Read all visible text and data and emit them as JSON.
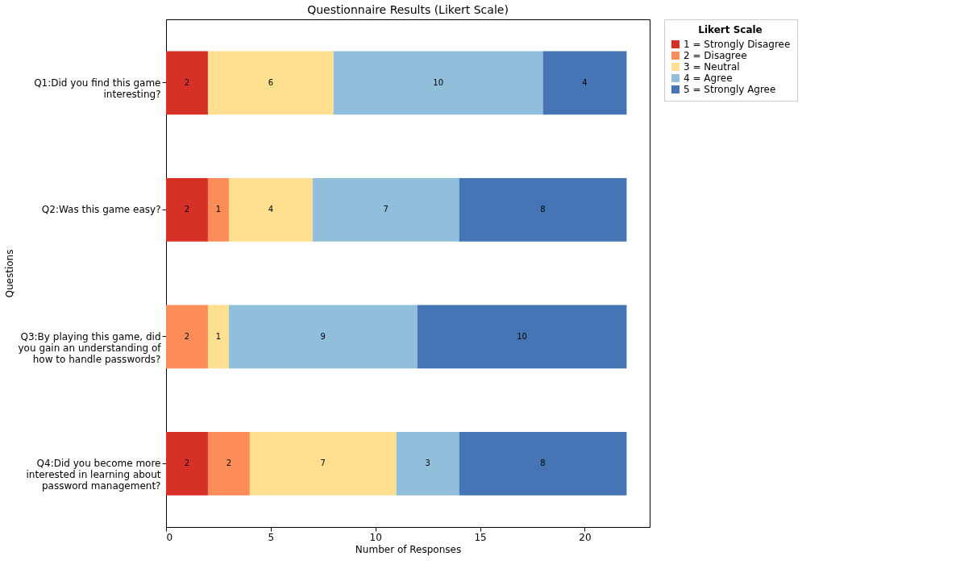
{
  "chart_data": {
    "type": "bar",
    "orientation": "horizontal",
    "stacked": true,
    "title": "Questionnaire Results (Likert Scale)",
    "xlabel": "Number of Responses",
    "ylabel": "Questions",
    "legend_title": "Likert Scale",
    "legend": "right",
    "categories": [
      "Q1:Did you find this game\ninteresting?",
      "Q2:Was this game easy?",
      "Q3:By playing this game, did\nyou gain an understanding of\nhow to handle passwords?",
      "Q4:Did you become more\ninterested in learning about\npassword management?"
    ],
    "series": [
      {
        "name": "1 = Strongly Disagree",
        "color": "#d73027",
        "values": [
          2,
          2,
          0,
          2
        ],
        "value_labels": [
          "2",
          "2",
          null,
          "2"
        ]
      },
      {
        "name": "2 = Disagree",
        "color": "#fc8d59",
        "values": [
          0,
          1,
          2,
          2
        ],
        "value_labels": [
          null,
          "1",
          "2",
          "2"
        ]
      },
      {
        "name": "3 = Neutral",
        "color": "#fee090",
        "values": [
          6,
          4,
          1,
          7
        ],
        "value_labels": [
          "6",
          "4",
          "1",
          "7"
        ]
      },
      {
        "name": "4 = Agree",
        "color": "#91bfdb",
        "values": [
          10,
          7,
          9,
          3
        ],
        "value_labels": [
          "10",
          "7",
          "9",
          "3"
        ]
      },
      {
        "name": "5 = Strongly Agree",
        "color": "#4575b4",
        "values": [
          4,
          8,
          10,
          8
        ],
        "value_labels": [
          "4",
          "8",
          "10",
          "8"
        ]
      }
    ],
    "xlim": [
      0,
      23.1
    ],
    "xticks": [
      0,
      5,
      10,
      15,
      20
    ],
    "grid": false
  }
}
